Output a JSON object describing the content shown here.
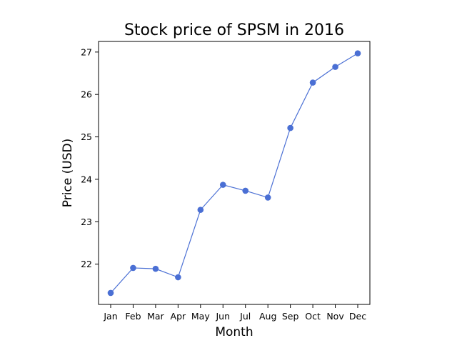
{
  "chart_data": {
    "type": "line",
    "title": "Stock price of SPSM in 2016",
    "xlabel": "Month",
    "ylabel": "Price (USD)",
    "categories": [
      "Jan",
      "Feb",
      "Mar",
      "Apr",
      "May",
      "Jun",
      "Jul",
      "Aug",
      "Sep",
      "Oct",
      "Nov",
      "Dec"
    ],
    "values": [
      21.32,
      21.91,
      21.89,
      21.69,
      23.28,
      23.87,
      23.73,
      23.57,
      25.21,
      26.28,
      26.65,
      26.97
    ],
    "yticks": [
      22,
      23,
      24,
      25,
      26,
      27
    ],
    "ylim": [
      21.05,
      27.25
    ],
    "grid": false,
    "colors": {
      "line": "#4a6fd4",
      "marker": "#4a6fd4"
    }
  }
}
